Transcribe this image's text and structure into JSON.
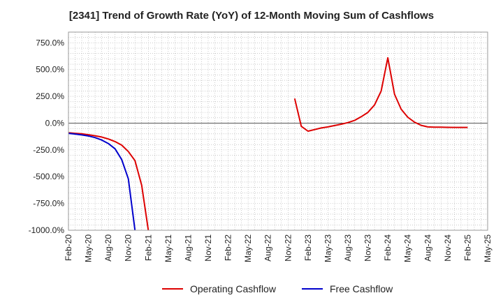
{
  "chart_data": {
    "type": "line",
    "title": "[2341]  Trend of Growth Rate (YoY) of 12-Month Moving Sum of Cashflows",
    "xlabel": "",
    "ylabel": "",
    "ylim": [
      -1000,
      850
    ],
    "yticks": [
      750,
      500,
      250,
      0,
      -250,
      -500,
      -750,
      -1000
    ],
    "ytick_labels": [
      "750.0%",
      "500.0%",
      "250.0%",
      "0.0%",
      "-250.0%",
      "-500.0%",
      "-750.0%",
      "-1000.0%"
    ],
    "xlim": [
      "2020-02",
      "2025-05"
    ],
    "xtick_labels": [
      "Feb-20",
      "May-20",
      "Aug-20",
      "Nov-20",
      "Feb-21",
      "May-21",
      "Aug-21",
      "Nov-21",
      "Feb-22",
      "May-22",
      "Aug-22",
      "Nov-22",
      "Feb-23",
      "May-23",
      "Aug-23",
      "Nov-23",
      "Feb-24",
      "May-24",
      "Aug-24",
      "Nov-24",
      "Feb-25",
      "May-25"
    ],
    "grid": true,
    "legend_position": "bottom",
    "series": [
      {
        "name": "Operating Cashflow",
        "color": "#dd0000",
        "points": [
          [
            "2020-02",
            -90
          ],
          [
            "2020-03",
            -95
          ],
          [
            "2020-04",
            -100
          ],
          [
            "2020-05",
            -108
          ],
          [
            "2020-06",
            -118
          ],
          [
            "2020-07",
            -130
          ],
          [
            "2020-08",
            -148
          ],
          [
            "2020-09",
            -172
          ],
          [
            "2020-10",
            -205
          ],
          [
            "2020-11",
            -265
          ],
          [
            "2020-12",
            -350
          ],
          [
            "2021-01",
            -580
          ],
          [
            "2021-02",
            -1000
          ],
          null,
          [
            "2022-12",
            230
          ],
          [
            "2023-01",
            -30
          ],
          [
            "2023-02",
            -75
          ],
          [
            "2023-03",
            -60
          ],
          [
            "2023-04",
            -45
          ],
          [
            "2023-05",
            -35
          ],
          [
            "2023-06",
            -22
          ],
          [
            "2023-07",
            -10
          ],
          [
            "2023-08",
            5
          ],
          [
            "2023-09",
            25
          ],
          [
            "2023-10",
            60
          ],
          [
            "2023-11",
            100
          ],
          [
            "2023-12",
            170
          ],
          [
            "2024-01",
            300
          ],
          [
            "2024-02",
            610
          ],
          [
            "2024-03",
            270
          ],
          [
            "2024-04",
            130
          ],
          [
            "2024-05",
            55
          ],
          [
            "2024-06",
            10
          ],
          [
            "2024-07",
            -20
          ],
          [
            "2024-08",
            -35
          ],
          [
            "2024-09",
            -37
          ],
          [
            "2024-10",
            -38
          ],
          [
            "2024-11",
            -39
          ],
          [
            "2024-12",
            -40
          ],
          [
            "2025-01",
            -40
          ],
          [
            "2025-02",
            -40
          ]
        ]
      },
      {
        "name": "Free Cashflow",
        "color": "#0000cc",
        "points": [
          [
            "2020-02",
            -95
          ],
          [
            "2020-03",
            -102
          ],
          [
            "2020-04",
            -110
          ],
          [
            "2020-05",
            -120
          ],
          [
            "2020-06",
            -135
          ],
          [
            "2020-07",
            -158
          ],
          [
            "2020-08",
            -190
          ],
          [
            "2020-09",
            -240
          ],
          [
            "2020-10",
            -340
          ],
          [
            "2020-11",
            -520
          ],
          [
            "2020-12",
            -1000
          ]
        ]
      }
    ]
  }
}
